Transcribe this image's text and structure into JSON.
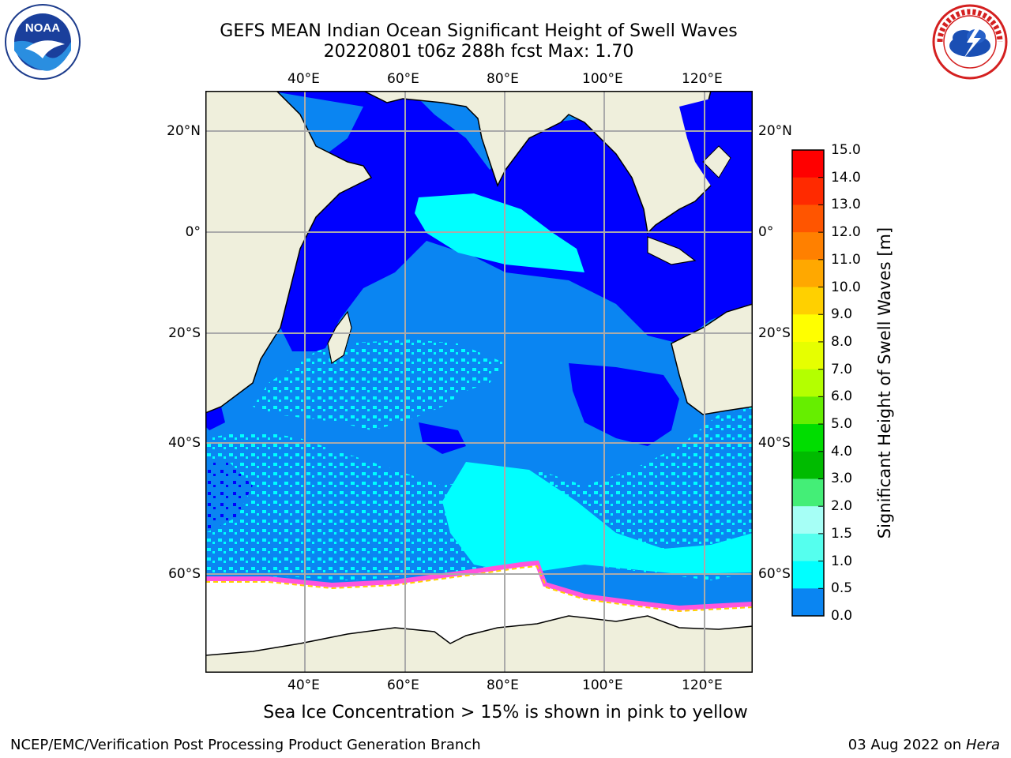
{
  "title": {
    "line1": "GEFS MEAN Indian Ocean Significant Height of Swell Waves",
    "line2": "20220801 t06z 288h fcst   Max: 1.70"
  },
  "axes": {
    "lon_labels": [
      "40°E",
      "60°E",
      "80°E",
      "100°E",
      "120°E"
    ],
    "lat_labels": [
      "20°N",
      "0°",
      "20°S",
      "40°S",
      "60°S"
    ]
  },
  "colorbar": {
    "label": "Significant Height of Swell Waves [m]",
    "ticks": [
      "15.0",
      "14.0",
      "13.0",
      "12.0",
      "11.0",
      "10.0",
      "9.0",
      "8.0",
      "7.0",
      "6.0",
      "5.0",
      "4.0",
      "3.0",
      "2.0",
      "1.5",
      "1.0",
      "0.5",
      "0.0"
    ],
    "colors": [
      "#ff0000",
      "#ff2a00",
      "#ff5500",
      "#ff8000",
      "#ffa800",
      "#ffd000",
      "#ffff00",
      "#e6ff00",
      "#b4ff00",
      "#66ee00",
      "#00dd00",
      "#00bb00",
      "#44ee77",
      "#a6fff6",
      "#55ffee",
      "#00ffff",
      "#0a85f2",
      "#0000ff"
    ]
  },
  "footnote": "Sea Ice Concentration > 15% is shown in pink to yellow",
  "credit": "NCEP/EMC/Verification Post Processing Product Generation Branch",
  "date_stamp": {
    "date": "03 Aug 2022 on",
    "host": "Hera"
  },
  "logos": {
    "noaa": "NOAA",
    "nws": "NATIONAL WEATHER SERVICE"
  },
  "palette": {
    "land": "#efefdc",
    "ocean_dark": "#0000ff",
    "ocean_mid": "#0a85f2",
    "ocean_light": "#00ffff",
    "ice": "#ff55dd",
    "ice_edge": "#ffd000"
  }
}
